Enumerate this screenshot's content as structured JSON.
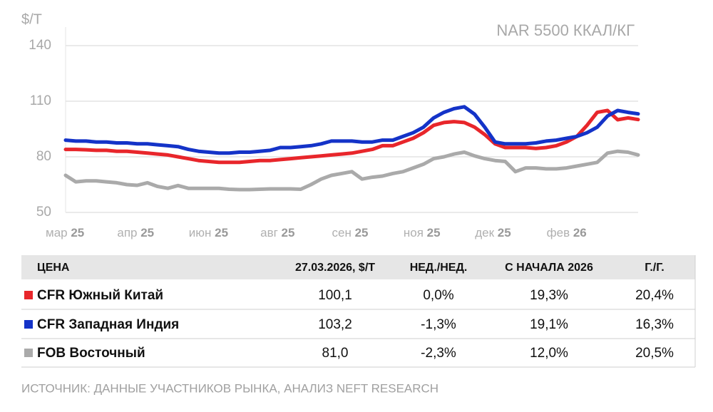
{
  "chart_data": {
    "type": "line",
    "y_label": "$/Т",
    "annotation": "NAR 5500 ККАЛ/КГ",
    "x": [
      0,
      1,
      2,
      3,
      4,
      5,
      6,
      7,
      8,
      9,
      10,
      11,
      12,
      13,
      14,
      15,
      16,
      17,
      18,
      19,
      20,
      21,
      22,
      23,
      24,
      25,
      26,
      27,
      28,
      29,
      30,
      31,
      32,
      33,
      34,
      35,
      36,
      37,
      38,
      39,
      40,
      41,
      42,
      43,
      44,
      45,
      46,
      47,
      48,
      49,
      50,
      51,
      52,
      53,
      54,
      55,
      56
    ],
    "xlim": [
      0,
      56
    ],
    "xticks": [
      {
        "value": 0,
        "label": "мар 25"
      },
      {
        "value": 7,
        "label": "апр 25"
      },
      {
        "value": 14,
        "label": "июн 25"
      },
      {
        "value": 21,
        "label": "авг 25"
      },
      {
        "value": 28,
        "label": "сен 25"
      },
      {
        "value": 35,
        "label": "ноя 25"
      },
      {
        "value": 42,
        "label": "дек 25"
      },
      {
        "value": 49,
        "label": "фев 26"
      }
    ],
    "ylim": [
      50,
      150
    ],
    "yticks": [
      50,
      80,
      110,
      140
    ],
    "grid": true,
    "series": [
      {
        "name": "CFR Южный Китай",
        "color": "#e8262b",
        "values": [
          84,
          84,
          83.8,
          83.5,
          83.5,
          83,
          83,
          82.5,
          82,
          81.5,
          81,
          80,
          79,
          78,
          77.5,
          77,
          77,
          77,
          77.5,
          78,
          78,
          78.5,
          79,
          79.5,
          80,
          80.5,
          81,
          81.5,
          82,
          83,
          84,
          86,
          86,
          88,
          90,
          93,
          97,
          98.5,
          99,
          98.5,
          96,
          92,
          87,
          85,
          85,
          85,
          84.5,
          85,
          86,
          88,
          91,
          97,
          104,
          105,
          100,
          101,
          100.1
        ]
      },
      {
        "name": "CFR Западная Индия",
        "color": "#1433c8",
        "values": [
          89,
          88.5,
          88.5,
          88,
          88,
          87.5,
          87.5,
          87,
          87,
          86.5,
          86,
          85.5,
          84,
          83,
          82.5,
          82,
          82,
          82.5,
          82.5,
          83,
          83.5,
          85,
          85,
          85.5,
          86,
          87,
          88.5,
          88.5,
          88.5,
          88,
          88,
          89,
          89,
          91,
          93,
          96,
          101,
          104,
          106,
          107,
          103,
          96,
          88,
          87,
          87,
          87,
          87.5,
          88.5,
          89,
          90,
          91,
          93,
          96,
          102,
          105,
          104,
          103.2
        ]
      },
      {
        "name": "FOB Восточный",
        "color": "#aaaaaa",
        "values": [
          70,
          66.5,
          67,
          67,
          66.5,
          66,
          65,
          64.6,
          66,
          64,
          63,
          64.5,
          63,
          63,
          63,
          63,
          62.5,
          62.3,
          62.3,
          62.5,
          62.7,
          62.7,
          62.7,
          62.5,
          65,
          68,
          70,
          71,
          72,
          68,
          69,
          69.6,
          71,
          72,
          74,
          76,
          79,
          80,
          81.5,
          82.5,
          80.5,
          79,
          78,
          77.5,
          72,
          74,
          74,
          73.5,
          73.5,
          74,
          75,
          76,
          77,
          82,
          83,
          82.5,
          81.0
        ]
      }
    ]
  },
  "table": {
    "header": [
      "ЦЕНА",
      "27.03.2026, $/Т",
      "НЕД./НЕД.",
      "С НАЧАЛА 2026",
      "Г./Г."
    ],
    "rows": [
      [
        "CFR Южный Китай",
        "100,1",
        "0,0%",
        "19,3%",
        "20,4%"
      ],
      [
        "CFR Западная Индия",
        "103,2",
        "-1,3%",
        "19,1%",
        "16,3%"
      ],
      [
        "FOB Восточный",
        "81,0",
        "-2,3%",
        "12,0%",
        "20,5%"
      ]
    ]
  },
  "footer": "ИСТОЧНИК: ДАННЫЕ УЧАСТНИКОВ РЫНКА, АНАЛИЗ NEFT RESEARCH"
}
